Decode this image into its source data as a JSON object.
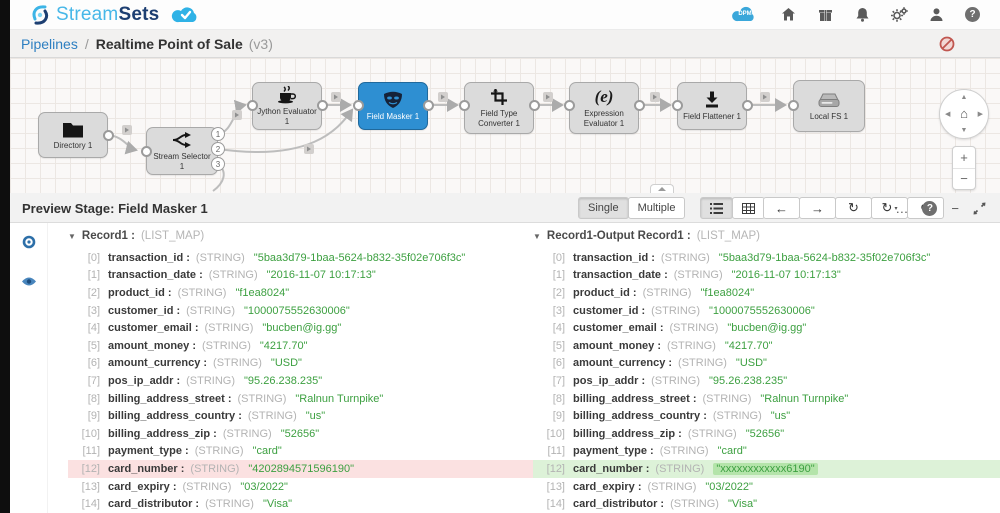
{
  "header": {
    "brand_part1": "Stream",
    "brand_part2": "Sets",
    "dpm_label": "DPM",
    "help_glyph": "?"
  },
  "breadcrumb": {
    "section": "Pipelines",
    "separator": "/",
    "title": "Realtime Point of Sale",
    "version": "(v3)"
  },
  "canvas": {
    "stages": [
      {
        "label": "Directory 1"
      },
      {
        "label": "Stream Selector 1"
      },
      {
        "label": "Jython Evaluator 1"
      },
      {
        "label": "Field Masker 1"
      },
      {
        "label": "Field Type Converter 1"
      },
      {
        "label": "Expression Evaluator 1"
      },
      {
        "label": "Field Flattener 1"
      },
      {
        "label": "Local FS 1"
      }
    ],
    "expression_glyph": "(e)",
    "selector_ports": [
      "1",
      "2",
      "3"
    ],
    "nav": {
      "up": "▲",
      "down": "▼",
      "left": "◀",
      "right": "▶",
      "home": "⌂",
      "zoom_in": "+",
      "zoom_out": "−"
    }
  },
  "preview": {
    "title": "Preview Stage: Field Masker 1",
    "mode_single": "Single",
    "mode_multiple": "Multiple",
    "icons": {
      "back": "←",
      "forward": "→",
      "refresh": "↻",
      "rerun": "↻",
      "rerun_caret": "▾",
      "revert": "↺",
      "more": "…",
      "minimize": "−"
    }
  },
  "colors": {
    "accent_blue": "#2e8fd2",
    "link_blue": "#2d7fc1",
    "value_green": "#3da041",
    "removed_row_bg": "#fbe1e1",
    "added_row_bg": "#ddf2d8",
    "added_value_bg": "#b4e4aa",
    "brand_light_blue": "#47b7e8",
    "brand_navy": "#1d3f72",
    "invalid_red": "#c0564f"
  },
  "records": {
    "left": {
      "expander": "▼",
      "title": "Record1 :",
      "type": "(LIST_MAP)",
      "fields": [
        {
          "index": "[0]",
          "name": "transaction_id :",
          "type": "(STRING)",
          "value": "\"5baa3d79-1baa-5624-b832-35f02e706f3c\""
        },
        {
          "index": "[1]",
          "name": "transaction_date :",
          "type": "(STRING)",
          "value": "\"2016-11-07 10:17:13\""
        },
        {
          "index": "[2]",
          "name": "product_id :",
          "type": "(STRING)",
          "value": "\"f1ea8024\""
        },
        {
          "index": "[3]",
          "name": "customer_id :",
          "type": "(STRING)",
          "value": "\"1000075552630006\""
        },
        {
          "index": "[4]",
          "name": "customer_email :",
          "type": "(STRING)",
          "value": "\"bucben@ig.gg\""
        },
        {
          "index": "[5]",
          "name": "amount_money :",
          "type": "(STRING)",
          "value": "\"4217.70\""
        },
        {
          "index": "[6]",
          "name": "amount_currency :",
          "type": "(STRING)",
          "value": "\"USD\""
        },
        {
          "index": "[7]",
          "name": "pos_ip_addr :",
          "type": "(STRING)",
          "value": "\"95.26.238.235\""
        },
        {
          "index": "[8]",
          "name": "billing_address_street :",
          "type": "(STRING)",
          "value": "\"Ralnun Turnpike\""
        },
        {
          "index": "[9]",
          "name": "billing_address_country :",
          "type": "(STRING)",
          "value": "\"us\""
        },
        {
          "index": "[10]",
          "name": "billing_address_zip :",
          "type": "(STRING)",
          "value": "\"52656\""
        },
        {
          "index": "[11]",
          "name": "payment_type :",
          "type": "(STRING)",
          "value": "\"card\""
        },
        {
          "index": "[12]",
          "name": "card_number :",
          "type": "(STRING)",
          "value": "\"4202894571596190\"",
          "highlight": "removed"
        },
        {
          "index": "[13]",
          "name": "card_expiry :",
          "type": "(STRING)",
          "value": "\"03/2022\""
        },
        {
          "index": "[14]",
          "name": "card_distributor :",
          "type": "(STRING)",
          "value": "\"Visa\""
        }
      ]
    },
    "right": {
      "expander": "▼",
      "title": "Record1-Output Record1 :",
      "type": "(LIST_MAP)",
      "fields": [
        {
          "index": "[0]",
          "name": "transaction_id :",
          "type": "(STRING)",
          "value": "\"5baa3d79-1baa-5624-b832-35f02e706f3c\""
        },
        {
          "index": "[1]",
          "name": "transaction_date :",
          "type": "(STRING)",
          "value": "\"2016-11-07 10:17:13\""
        },
        {
          "index": "[2]",
          "name": "product_id :",
          "type": "(STRING)",
          "value": "\"f1ea8024\""
        },
        {
          "index": "[3]",
          "name": "customer_id :",
          "type": "(STRING)",
          "value": "\"1000075552630006\""
        },
        {
          "index": "[4]",
          "name": "customer_email :",
          "type": "(STRING)",
          "value": "\"bucben@ig.gg\""
        },
        {
          "index": "[5]",
          "name": "amount_money :",
          "type": "(STRING)",
          "value": "\"4217.70\""
        },
        {
          "index": "[6]",
          "name": "amount_currency :",
          "type": "(STRING)",
          "value": "\"USD\""
        },
        {
          "index": "[7]",
          "name": "pos_ip_addr :",
          "type": "(STRING)",
          "value": "\"95.26.238.235\""
        },
        {
          "index": "[8]",
          "name": "billing_address_street :",
          "type": "(STRING)",
          "value": "\"Ralnun Turnpike\""
        },
        {
          "index": "[9]",
          "name": "billing_address_country :",
          "type": "(STRING)",
          "value": "\"us\""
        },
        {
          "index": "[10]",
          "name": "billing_address_zip :",
          "type": "(STRING)",
          "value": "\"52656\""
        },
        {
          "index": "[11]",
          "name": "payment_type :",
          "type": "(STRING)",
          "value": "\"card\""
        },
        {
          "index": "[12]",
          "name": "card_number :",
          "type": "(STRING)",
          "value": "\"xxxxxxxxxxxx6190\"",
          "highlight": "added"
        },
        {
          "index": "[13]",
          "name": "card_expiry :",
          "type": "(STRING)",
          "value": "\"03/2022\""
        },
        {
          "index": "[14]",
          "name": "card_distributor :",
          "type": "(STRING)",
          "value": "\"Visa\""
        }
      ]
    }
  }
}
